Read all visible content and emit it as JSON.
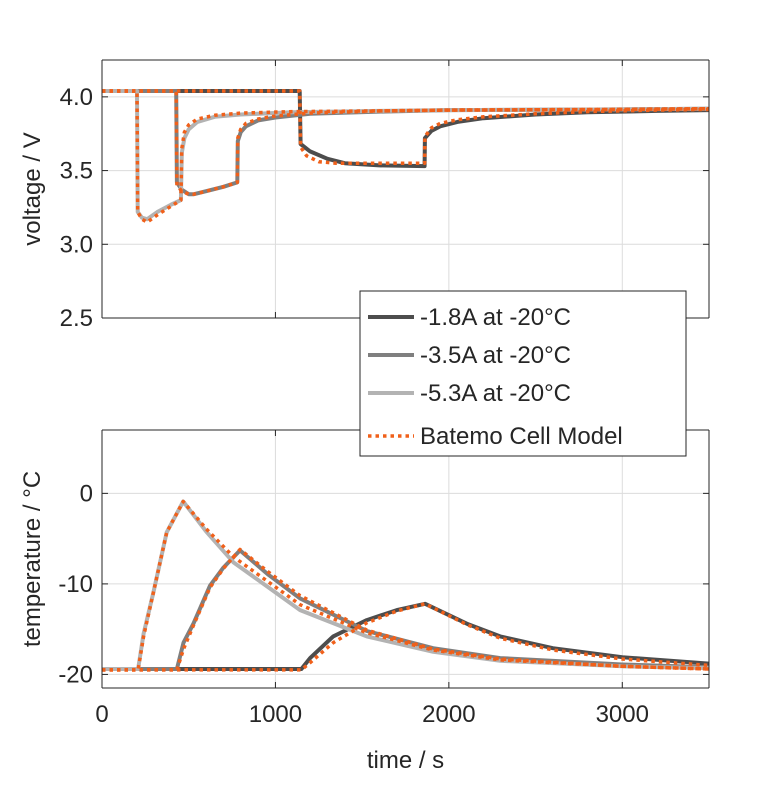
{
  "chart_data": [
    {
      "type": "line",
      "title": "",
      "xlabel": "",
      "ylabel": "voltage / V",
      "xlim": [
        0,
        3500
      ],
      "ylim": [
        2.5,
        4.25
      ],
      "xticks": [
        0,
        1000,
        2000,
        3000
      ],
      "xtick_labels_shown": false,
      "yticks": [
        2.5,
        3.0,
        3.5,
        4.0
      ],
      "ytick_labels": [
        "2.5",
        "3.0",
        "3.5",
        "4.0"
      ],
      "grid": true,
      "series": [
        {
          "name": "-1.8A at -20°C",
          "color": "#4d4d4d",
          "style": "solid",
          "x": [
            0,
            1140,
            1145,
            1200,
            1300,
            1400,
            1600,
            1860,
            1862,
            1900,
            1950,
            2050,
            2200,
            2500,
            2800,
            3200,
            3500
          ],
          "y": [
            4.04,
            4.04,
            3.68,
            3.63,
            3.58,
            3.55,
            3.535,
            3.53,
            3.72,
            3.77,
            3.8,
            3.83,
            3.855,
            3.88,
            3.895,
            3.905,
            3.91
          ]
        },
        {
          "name": "-3.5A at -20°C",
          "color": "#7f7f7f",
          "style": "solid",
          "x": [
            0,
            428,
            432,
            460,
            500,
            530,
            600,
            700,
            780,
            783,
            800,
            830,
            900,
            1000,
            1200,
            1600,
            2000,
            3000,
            3500
          ],
          "y": [
            4.04,
            4.04,
            3.42,
            3.37,
            3.34,
            3.34,
            3.36,
            3.39,
            3.42,
            3.7,
            3.76,
            3.8,
            3.84,
            3.86,
            3.885,
            3.9,
            3.91,
            3.915,
            3.92
          ]
        },
        {
          "name": "-5.3A at -20°C",
          "color": "#b3b3b3",
          "style": "solid",
          "x": [
            0,
            202,
            206,
            230,
            260,
            320,
            400,
            455,
            460,
            475,
            500,
            550,
            650,
            800,
            1100,
            1600,
            2000,
            3000,
            3500
          ],
          "y": [
            4.04,
            4.04,
            3.22,
            3.18,
            3.17,
            3.22,
            3.27,
            3.3,
            3.62,
            3.72,
            3.78,
            3.83,
            3.865,
            3.88,
            3.895,
            3.905,
            3.91,
            3.915,
            3.92
          ]
        },
        {
          "name": "Batemo Cell Model",
          "color": "#f0601a",
          "style": "dotted",
          "x": [
            0,
            1140,
            1145,
            1180,
            1250,
            1350,
            1500,
            1860,
            1862,
            1900,
            1950,
            2050,
            2200,
            2500,
            2800,
            3200,
            3500
          ],
          "y": [
            4.04,
            4.04,
            3.66,
            3.6,
            3.56,
            3.55,
            3.55,
            3.55,
            3.73,
            3.79,
            3.82,
            3.845,
            3.865,
            3.885,
            3.9,
            3.91,
            3.915
          ]
        },
        {
          "name": "Batemo Cell Model",
          "color": "#f0601a",
          "style": "dotted",
          "x": [
            0,
            428,
            432,
            460,
            500,
            530,
            600,
            700,
            780,
            783,
            800,
            830,
            900,
            1000,
            1200,
            1600,
            2000,
            3000,
            3500
          ],
          "y": [
            4.04,
            4.04,
            3.4,
            3.36,
            3.34,
            3.34,
            3.36,
            3.39,
            3.42,
            3.72,
            3.78,
            3.82,
            3.85,
            3.87,
            3.89,
            3.905,
            3.91,
            3.915,
            3.92
          ]
        },
        {
          "name": "Batemo Cell Model",
          "color": "#f0601a",
          "style": "dotted",
          "x": [
            0,
            202,
            206,
            230,
            260,
            320,
            400,
            455,
            460,
            475,
            500,
            550,
            650,
            800,
            1100,
            1600,
            2000,
            3000,
            3500
          ],
          "y": [
            4.04,
            4.04,
            3.22,
            3.17,
            3.15,
            3.2,
            3.26,
            3.3,
            3.65,
            3.76,
            3.81,
            3.85,
            3.875,
            3.89,
            3.9,
            3.905,
            3.91,
            3.915,
            3.92
          ]
        }
      ]
    },
    {
      "type": "line",
      "title": "",
      "xlabel": "time / s",
      "ylabel": "temperature / °C",
      "xlim": [
        0,
        3500
      ],
      "ylim": [
        -21.5,
        7
      ],
      "xticks": [
        0,
        1000,
        2000,
        3000
      ],
      "xtick_labels": [
        "0",
        "1000",
        "2000",
        "3000"
      ],
      "yticks": [
        -20,
        -10,
        0
      ],
      "ytick_labels": [
        "-20",
        "-10",
        "0"
      ],
      "grid": true,
      "series": [
        {
          "name": "-1.8A at -20°C",
          "color": "#4d4d4d",
          "style": "solid",
          "x": [
            0,
            1150,
            1200,
            1333,
            1527,
            1700,
            1863,
            2104,
            2296,
            2600,
            3000,
            3500
          ],
          "y": [
            -19.4,
            -19.4,
            -18.2,
            -15.8,
            -14,
            -12.9,
            -12.2,
            -14.4,
            -15.8,
            -17.1,
            -18.1,
            -18.8
          ]
        },
        {
          "name": "-3.5A at -20°C",
          "color": "#7f7f7f",
          "style": "solid",
          "x": [
            0,
            432,
            470,
            527,
            623,
            700,
            796,
            960,
            1142,
            1527,
            1910,
            2296,
            3000,
            3500
          ],
          "y": [
            -19.4,
            -19.4,
            -16.5,
            -14.4,
            -10.2,
            -8.2,
            -6.3,
            -9.0,
            -11.6,
            -15.2,
            -17.1,
            -18.2,
            -18.9,
            -19.2
          ]
        },
        {
          "name": "-5.3A at -20°C",
          "color": "#b3b3b3",
          "style": "solid",
          "x": [
            0,
            208,
            240,
            296,
            373,
            468,
            600,
            757,
            1142,
            1527,
            1910,
            2296,
            3000,
            3500
          ],
          "y": [
            -19.4,
            -19.4,
            -15.5,
            -11,
            -4.3,
            -0.9,
            -4.2,
            -7.6,
            -12.9,
            -15.8,
            -17.5,
            -18.5,
            -19.1,
            -19.3
          ]
        },
        {
          "name": "Batemo Cell Model",
          "color": "#f0601a",
          "style": "dotted",
          "x": [
            0,
            1150,
            1200,
            1333,
            1527,
            1700,
            1863,
            2104,
            2296,
            2600,
            3000,
            3500
          ],
          "y": [
            -19.5,
            -19.5,
            -18.7,
            -16.5,
            -14.3,
            -13,
            -12.2,
            -14.5,
            -16,
            -17.3,
            -18.3,
            -19
          ]
        },
        {
          "name": "Batemo Cell Model",
          "color": "#f0601a",
          "style": "dotted",
          "x": [
            0,
            432,
            470,
            527,
            623,
            700,
            796,
            960,
            1142,
            1527,
            1910,
            2296,
            3000,
            3500
          ],
          "y": [
            -19.5,
            -19.5,
            -17.2,
            -14.6,
            -10.4,
            -8.3,
            -6.2,
            -8.7,
            -11.3,
            -15.1,
            -17.2,
            -18.3,
            -19.1,
            -19.4
          ]
        },
        {
          "name": "Batemo Cell Model",
          "color": "#f0601a",
          "style": "dotted",
          "x": [
            0,
            208,
            240,
            296,
            373,
            468,
            600,
            757,
            1142,
            1527,
            1910,
            2296,
            3000,
            3500
          ],
          "y": [
            -19.5,
            -19.5,
            -15.8,
            -11,
            -4.3,
            -0.9,
            -3.9,
            -7.0,
            -12.3,
            -15.4,
            -17.3,
            -18.4,
            -19.1,
            -19.4
          ]
        }
      ]
    }
  ],
  "legend": {
    "placement": "center-right",
    "entries": [
      {
        "label": "-1.8A at -20°C",
        "color": "#4d4d4d",
        "style": "solid"
      },
      {
        "label": "-3.5A at -20°C",
        "color": "#7f7f7f",
        "style": "solid"
      },
      {
        "label": "-5.3A at -20°C",
        "color": "#b3b3b3",
        "style": "solid"
      },
      {
        "label": "Batemo Cell Model",
        "color": "#f0601a",
        "style": "dotted"
      }
    ]
  }
}
